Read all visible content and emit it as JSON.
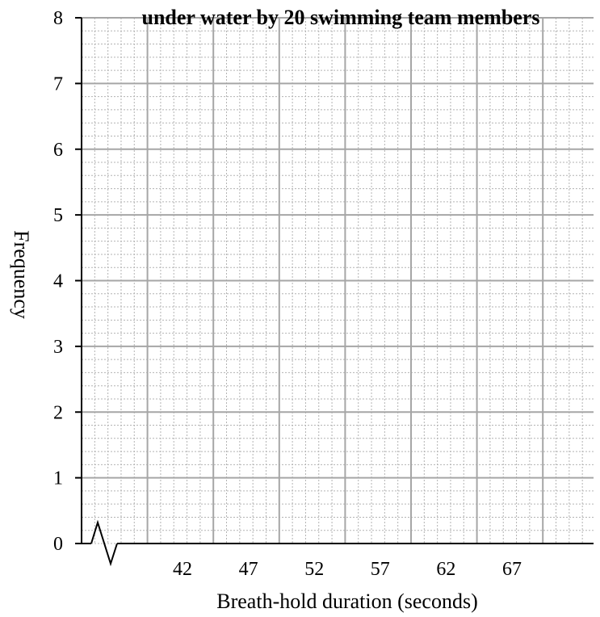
{
  "chart_data": {
    "type": "bar",
    "title": "under water by 20 swimming team members",
    "xlabel": "Breath-hold duration (seconds)",
    "ylabel": "Frequency",
    "ylim": [
      0,
      8
    ],
    "y_ticks": [
      "0",
      "1",
      "2",
      "3",
      "4",
      "5",
      "6",
      "7",
      "8"
    ],
    "x_ticks": [
      "42",
      "47",
      "52",
      "57",
      "62",
      "67"
    ],
    "axis_break": true,
    "grid": true,
    "values": []
  }
}
